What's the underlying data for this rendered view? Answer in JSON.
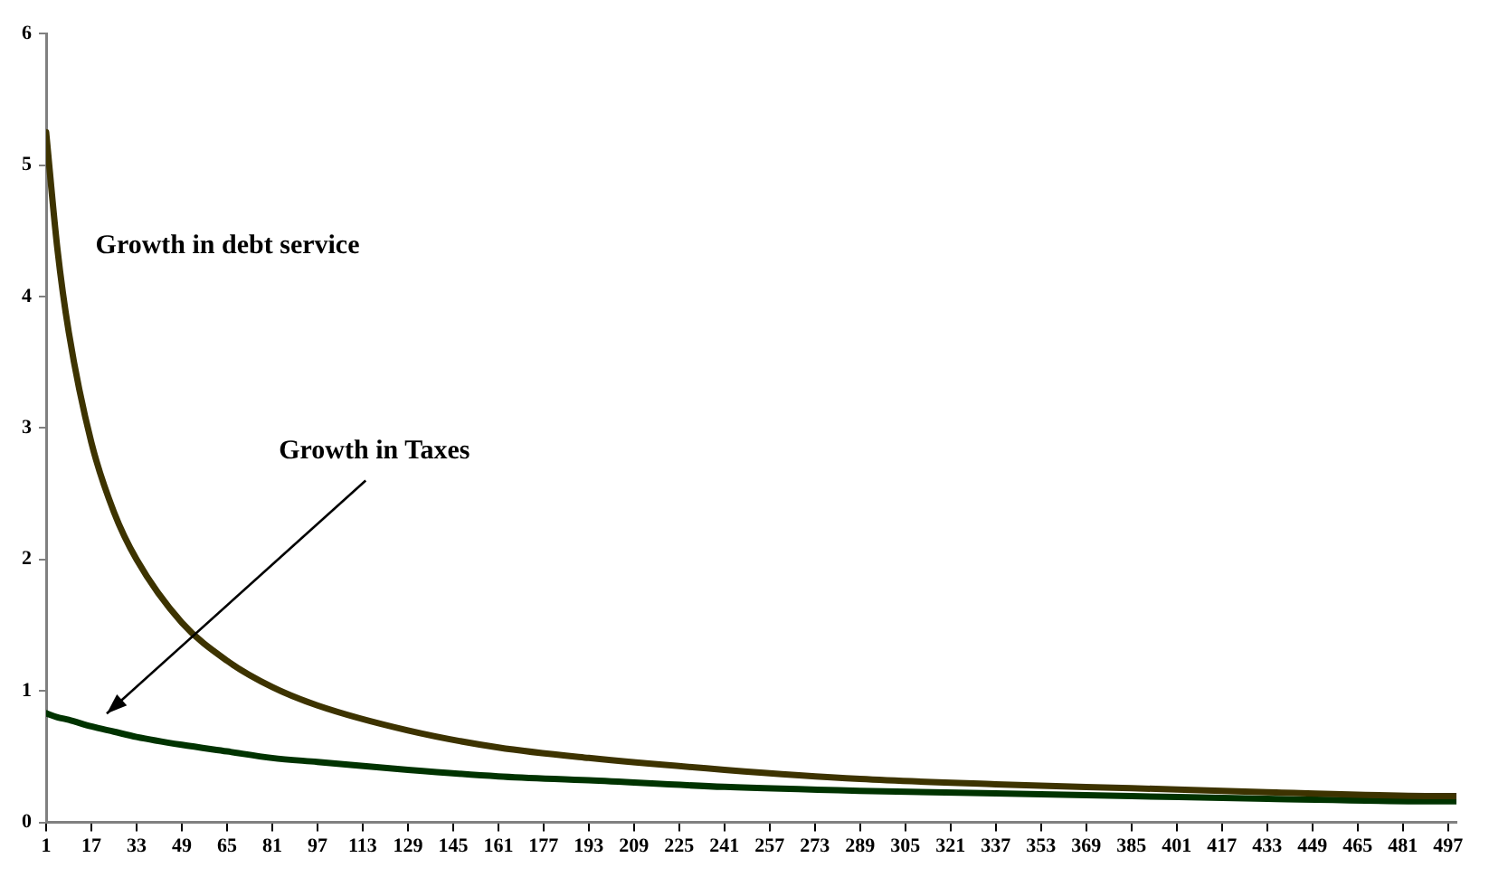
{
  "chart_data": {
    "type": "line",
    "x": [
      1,
      5,
      9,
      17,
      25,
      33,
      49,
      65,
      81,
      97,
      129,
      161,
      193,
      241,
      289,
      337,
      385,
      433,
      497,
      500
    ],
    "series": [
      {
        "name": "Growth in debt service",
        "color": "#3d3300",
        "values": [
          5.25,
          4.36,
          3.73,
          2.89,
          2.36,
          2.0,
          1.52,
          1.23,
          1.03,
          0.89,
          0.7,
          0.57,
          0.49,
          0.4,
          0.33,
          0.29,
          0.26,
          0.23,
          0.2,
          0.2
        ]
      },
      {
        "name": "Growth in Taxes",
        "color": "#003300",
        "values": [
          0.83,
          0.8,
          0.78,
          0.73,
          0.69,
          0.65,
          0.59,
          0.54,
          0.49,
          0.46,
          0.4,
          0.35,
          0.32,
          0.27,
          0.24,
          0.22,
          0.2,
          0.18,
          0.16,
          0.16
        ]
      }
    ],
    "xlim": [
      1,
      500
    ],
    "xticks": [
      1,
      17,
      33,
      49,
      65,
      81,
      97,
      113,
      129,
      145,
      161,
      177,
      193,
      209,
      225,
      241,
      257,
      273,
      289,
      305,
      321,
      337,
      353,
      369,
      385,
      401,
      417,
      433,
      449,
      465,
      481,
      497
    ],
    "ylim": [
      0,
      6
    ],
    "yticks": [
      0,
      1,
      2,
      3,
      4,
      5,
      6
    ],
    "grid": false,
    "legend": false,
    "marker": "none",
    "line_style": "solid"
  }
}
